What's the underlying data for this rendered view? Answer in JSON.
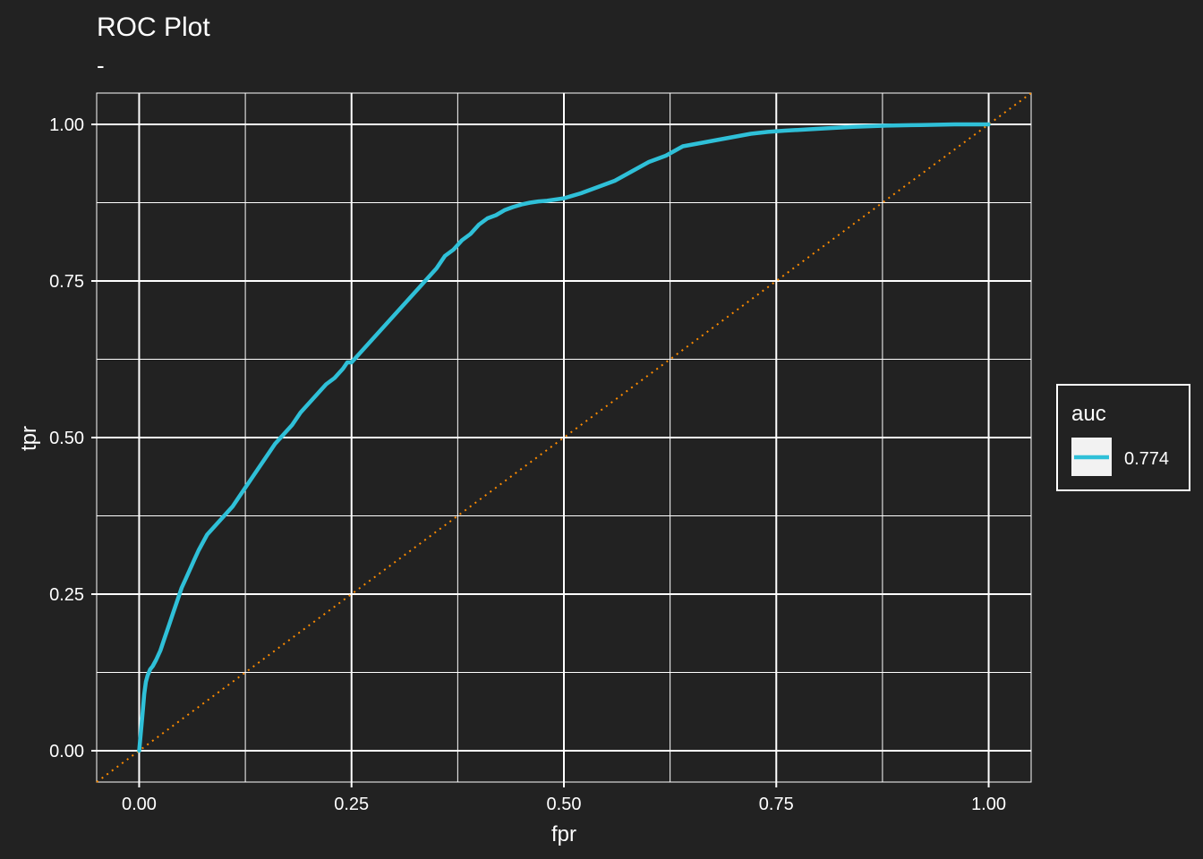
{
  "chart_data": {
    "type": "line",
    "title": "ROC Plot",
    "subtitle": "-",
    "xlabel": "fpr",
    "ylabel": "tpr",
    "xlim": [
      -0.05,
      1.05
    ],
    "ylim": [
      -0.05,
      1.05
    ],
    "x_ticks": [
      0.0,
      0.25,
      0.5,
      0.75,
      1.0
    ],
    "x_tick_labels": [
      "0.00",
      "0.25",
      "0.50",
      "0.75",
      "1.00"
    ],
    "y_ticks": [
      0.0,
      0.25,
      0.5,
      0.75,
      1.0
    ],
    "y_tick_labels": [
      "0.00",
      "0.25",
      "0.50",
      "0.75",
      "1.00"
    ],
    "minor_gridlines": [
      0.125,
      0.375,
      0.625,
      0.875
    ],
    "grid": true,
    "legend": {
      "title": "auc",
      "position": "right",
      "entries": [
        {
          "label": "0.774",
          "color": "#2fc0d8"
        }
      ]
    },
    "colors": {
      "background": "#222222",
      "grid": "#ffffff",
      "series": "#2fc0d8",
      "reference": "#ff8c00",
      "legend_key_bg": "#f2f2f2"
    },
    "series": [
      {
        "x": [
          0.0,
          0.002,
          0.004,
          0.006,
          0.008,
          0.01,
          0.013,
          0.016,
          0.02,
          0.025,
          0.03,
          0.035,
          0.04,
          0.045,
          0.05,
          0.055,
          0.06,
          0.065,
          0.07,
          0.08,
          0.09,
          0.1,
          0.11,
          0.12,
          0.13,
          0.14,
          0.15,
          0.16,
          0.17,
          0.18,
          0.19,
          0.2,
          0.21,
          0.22,
          0.23,
          0.24,
          0.245,
          0.25,
          0.26,
          0.27,
          0.28,
          0.29,
          0.3,
          0.31,
          0.32,
          0.33,
          0.34,
          0.35,
          0.36,
          0.37,
          0.38,
          0.39,
          0.4,
          0.41,
          0.42,
          0.43,
          0.44,
          0.45,
          0.46,
          0.47,
          0.48,
          0.5,
          0.52,
          0.54,
          0.56,
          0.58,
          0.6,
          0.62,
          0.64,
          0.66,
          0.68,
          0.7,
          0.72,
          0.74,
          0.76,
          0.8,
          0.84,
          0.88,
          0.92,
          0.96,
          1.0
        ],
        "y": [
          0.0,
          0.03,
          0.06,
          0.09,
          0.11,
          0.12,
          0.13,
          0.135,
          0.145,
          0.16,
          0.18,
          0.2,
          0.22,
          0.24,
          0.26,
          0.275,
          0.29,
          0.305,
          0.32,
          0.345,
          0.36,
          0.375,
          0.39,
          0.41,
          0.43,
          0.45,
          0.47,
          0.49,
          0.505,
          0.52,
          0.54,
          0.555,
          0.57,
          0.585,
          0.595,
          0.61,
          0.62,
          0.62,
          0.635,
          0.65,
          0.665,
          0.68,
          0.695,
          0.71,
          0.725,
          0.74,
          0.755,
          0.77,
          0.79,
          0.8,
          0.815,
          0.825,
          0.84,
          0.85,
          0.855,
          0.863,
          0.868,
          0.872,
          0.875,
          0.877,
          0.878,
          0.882,
          0.89,
          0.9,
          0.91,
          0.925,
          0.94,
          0.95,
          0.965,
          0.97,
          0.975,
          0.98,
          0.985,
          0.988,
          0.99,
          0.993,
          0.996,
          0.998,
          0.999,
          1.0,
          1.0
        ]
      }
    ]
  }
}
